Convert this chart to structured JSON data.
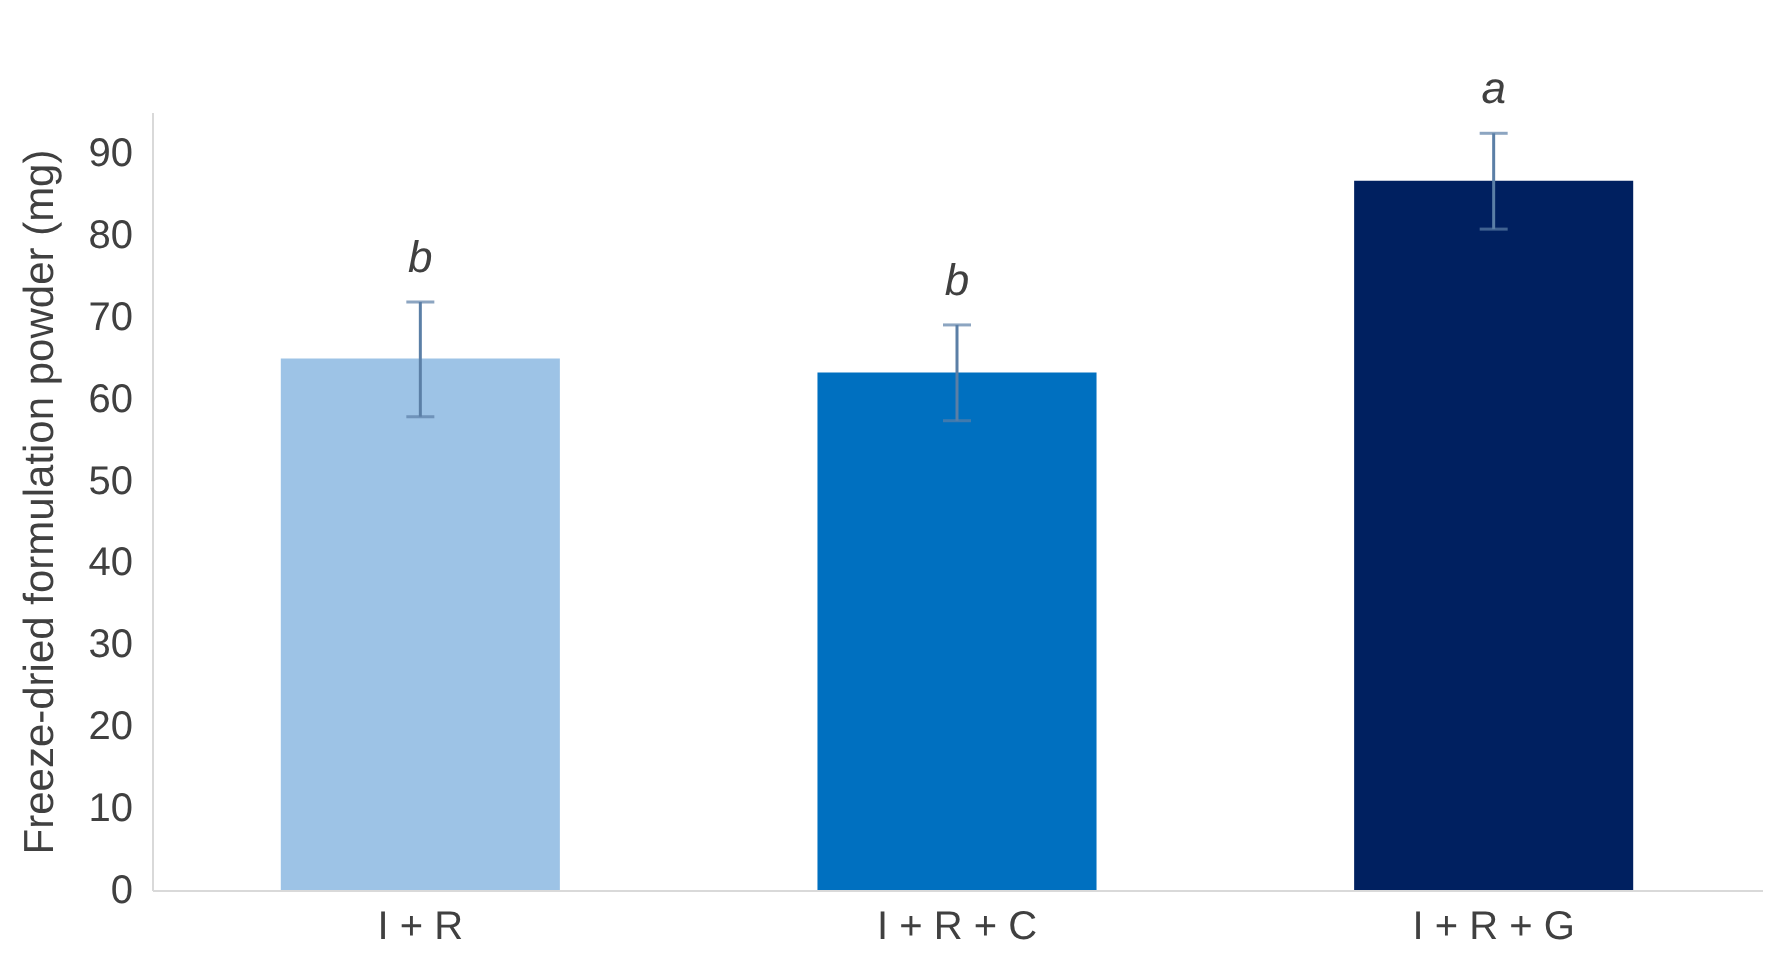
{
  "chart_data": {
    "type": "bar",
    "ylabel": "Freeze-dried formulation powder (mg)",
    "categories": [
      "I + R",
      "I +  R + C",
      "I + R + G"
    ],
    "values": [
      64.9,
      63.2,
      86.6
    ],
    "colors": [
      "#9dc3e6",
      "#0070c0",
      "#002060"
    ],
    "errors": [
      [
        57.8,
        71.8
      ],
      [
        57.3,
        69.0
      ],
      [
        80.7,
        92.4
      ]
    ],
    "ylim": [
      0,
      95
    ],
    "yticks": [
      0,
      10,
      20,
      30,
      40,
      50,
      60,
      70,
      80,
      90
    ],
    "grid": false,
    "legend": false,
    "annotations": [
      {
        "text": "b",
        "x": "I + R",
        "y": 71.8
      },
      {
        "text": "b",
        "x": "I +  R + C",
        "y": 69.0
      },
      {
        "text": "a",
        "x": "I + R + G",
        "y": 92.4
      }
    ]
  }
}
